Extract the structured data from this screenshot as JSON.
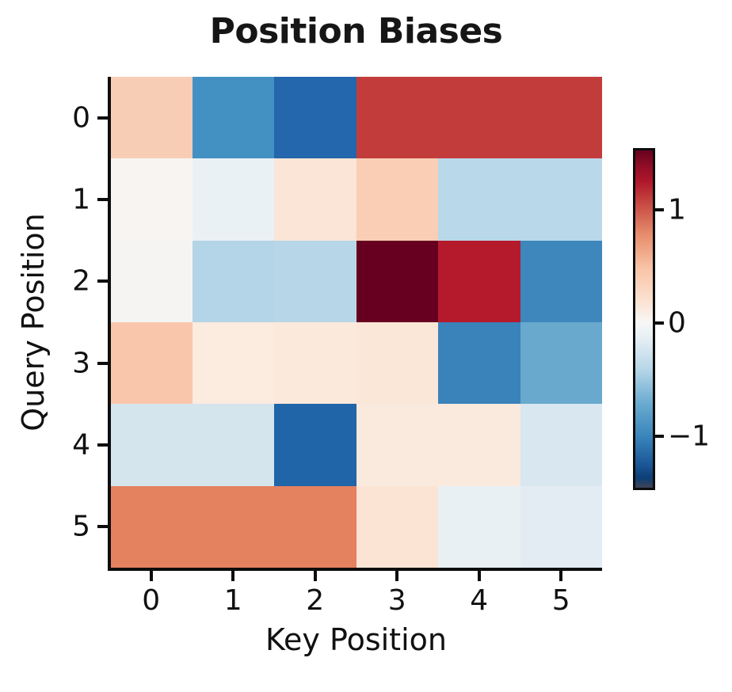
{
  "figure": {
    "background": "#ffffff",
    "text_color": "#111111",
    "spine_color": "#0d0d0d"
  },
  "chart_data": {
    "type": "heatmap",
    "title": "Position Biases",
    "xlabel": "Key Position",
    "ylabel": "Query Position",
    "x_tick_labels": [
      "0",
      "1",
      "2",
      "3",
      "4",
      "5"
    ],
    "y_tick_labels": [
      "0",
      "1",
      "2",
      "3",
      "4",
      "5"
    ],
    "colormap": "RdBu_r",
    "vmin": -1.5,
    "vmax": 1.5,
    "values": [
      [
        0.4,
        -0.9,
        -1.2,
        1.05,
        1.05,
        1.05
      ],
      [
        0.03,
        -0.08,
        0.25,
        0.4,
        -0.4,
        -0.4
      ],
      [
        0.01,
        -0.43,
        -0.42,
        1.5,
        1.22,
        -0.95
      ],
      [
        0.45,
        0.2,
        0.21,
        0.23,
        -1.0,
        -0.72
      ],
      [
        -0.24,
        -0.24,
        -1.25,
        0.21,
        0.21,
        -0.21
      ],
      [
        0.75,
        0.75,
        0.75,
        0.27,
        -0.09,
        -0.15
      ]
    ],
    "cell_colors": [
      [
        "#f8cdb6",
        "#4391c3",
        "#2467ac",
        "#c33c3c",
        "#c33c3c",
        "#c33c3c"
      ],
      [
        "#f7f4f1",
        "#eaf1f5",
        "#fae5d6",
        "#f9ceb4",
        "#b9d8ea",
        "#b9d8ea"
      ],
      [
        "#f5f4f3",
        "#b4d4e7",
        "#b7d6e8",
        "#670020",
        "#b51a2c",
        "#3d87bd"
      ],
      [
        "#f9c6ab",
        "#fcebdf",
        "#fbe9db",
        "#fbe7d8",
        "#3a82ba",
        "#69a9cd"
      ],
      [
        "#d5e5ee",
        "#d5e5ee",
        "#2065a8",
        "#fae9dd",
        "#fae9dd",
        "#d8e7f0"
      ],
      [
        "#e4815f",
        "#e4815f",
        "#e4815f",
        "#fce4d4",
        "#e9f0f4",
        "#e3ecf2"
      ]
    ],
    "colorbar": {
      "range": [
        -1.45,
        1.52
      ],
      "ticks": [
        {
          "value": 1,
          "label": "1"
        },
        {
          "value": 0,
          "label": "0"
        },
        {
          "value": -1,
          "label": "−1"
        }
      ],
      "gradient": [
        {
          "pos": 0.0,
          "color": "#3d4356"
        },
        {
          "pos": 0.03,
          "color": "#0e3f78"
        },
        {
          "pos": 0.07,
          "color": "#1c5796"
        },
        {
          "pos": 0.15,
          "color": "#3884ba"
        },
        {
          "pos": 0.25,
          "color": "#6aabd0"
        },
        {
          "pos": 0.35,
          "color": "#b6d6e8"
        },
        {
          "pos": 0.45,
          "color": "#e9f1f5"
        },
        {
          "pos": 0.49,
          "color": "#f7f7f6"
        },
        {
          "pos": 0.55,
          "color": "#fbe3d2"
        },
        {
          "pos": 0.65,
          "color": "#f8c4a8"
        },
        {
          "pos": 0.75,
          "color": "#e78d6c"
        },
        {
          "pos": 0.85,
          "color": "#c44440"
        },
        {
          "pos": 0.91,
          "color": "#ae162b"
        },
        {
          "pos": 0.96,
          "color": "#8b0c25"
        },
        {
          "pos": 1.0,
          "color": "#67001f"
        }
      ]
    }
  }
}
